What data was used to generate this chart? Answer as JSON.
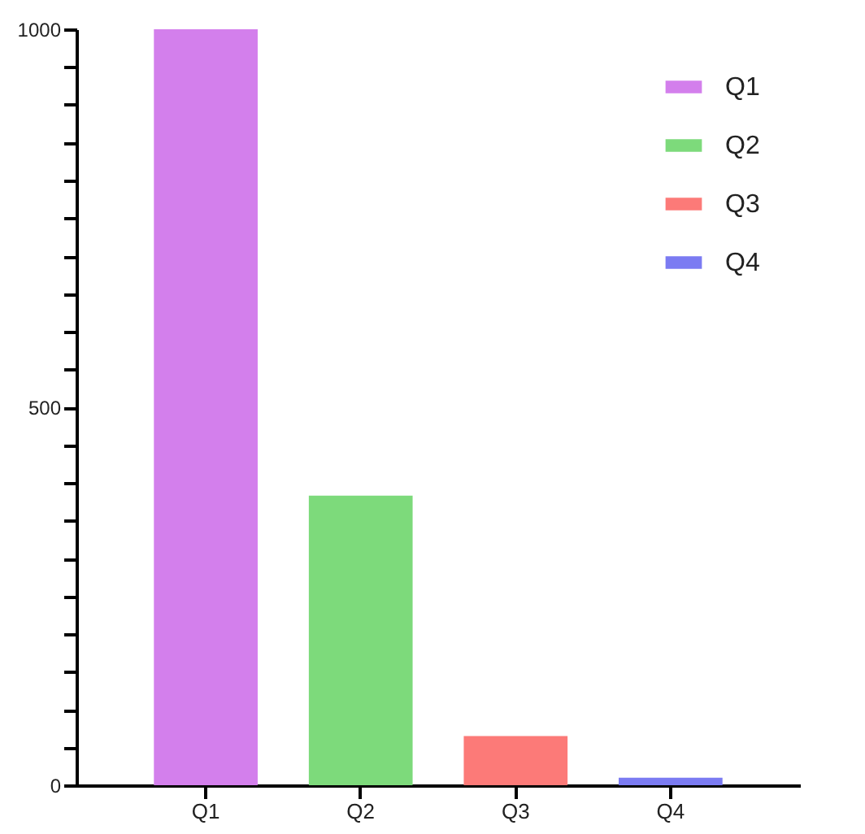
{
  "chart_data": {
    "type": "bar",
    "categories": [
      "Q1",
      "Q2",
      "Q3",
      "Q4"
    ],
    "series": [
      {
        "name": "Q1",
        "color": "#d37fec",
        "values": [
          1000,
          null,
          null,
          null
        ]
      },
      {
        "name": "Q2",
        "color": "#7dda7b",
        "values": [
          null,
          383,
          null,
          null
        ]
      },
      {
        "name": "Q3",
        "color": "#fc7a78",
        "values": [
          null,
          null,
          65,
          null
        ]
      },
      {
        "name": "Q4",
        "color": "#7b7bf2",
        "values": [
          null,
          null,
          null,
          10
        ]
      }
    ],
    "ylim": [
      0,
      1000
    ],
    "yticks": [
      0,
      {
        "value": 50,
        "label": null
      },
      {
        "value": 100,
        "label": null
      },
      {
        "value": 150,
        "label": null
      },
      {
        "value": 200,
        "label": null
      },
      {
        "value": 250,
        "label": null
      },
      {
        "value": 300,
        "label": null
      },
      {
        "value": 350,
        "label": null
      },
      {
        "value": 400,
        "label": null
      },
      {
        "value": 450,
        "label": null
      },
      500,
      {
        "value": 550,
        "label": null
      },
      {
        "value": 600,
        "label": null
      },
      {
        "value": 650,
        "label": null
      },
      {
        "value": 700,
        "label": null
      },
      {
        "value": 750,
        "label": null
      },
      {
        "value": 800,
        "label": null
      },
      {
        "value": 850,
        "label": null
      },
      {
        "value": 900,
        "label": null
      },
      {
        "value": 950,
        "label": null
      },
      1000
    ],
    "grid": false,
    "legend": "top right"
  }
}
